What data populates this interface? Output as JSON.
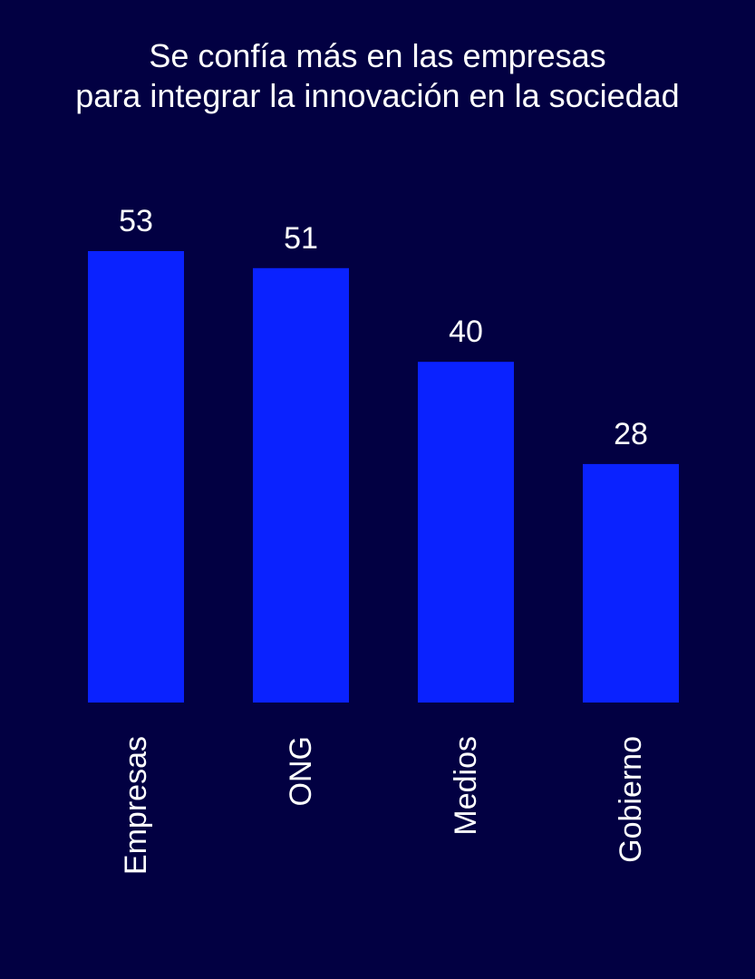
{
  "colors": {
    "background": "#020042",
    "bar": "#0a22ff",
    "text": "#ffffff"
  },
  "chart_data": {
    "type": "bar",
    "title_lines": [
      "Se confía más en las empresas",
      "para integrar la innovación en la sociedad"
    ],
    "categories": [
      "Empresas",
      "ONG",
      "Medios",
      "Gobierno"
    ],
    "values": [
      53,
      51,
      40,
      28
    ],
    "ylim": [
      0,
      53
    ],
    "data_labels": true,
    "grid": false,
    "xlabel": "",
    "ylabel": ""
  }
}
